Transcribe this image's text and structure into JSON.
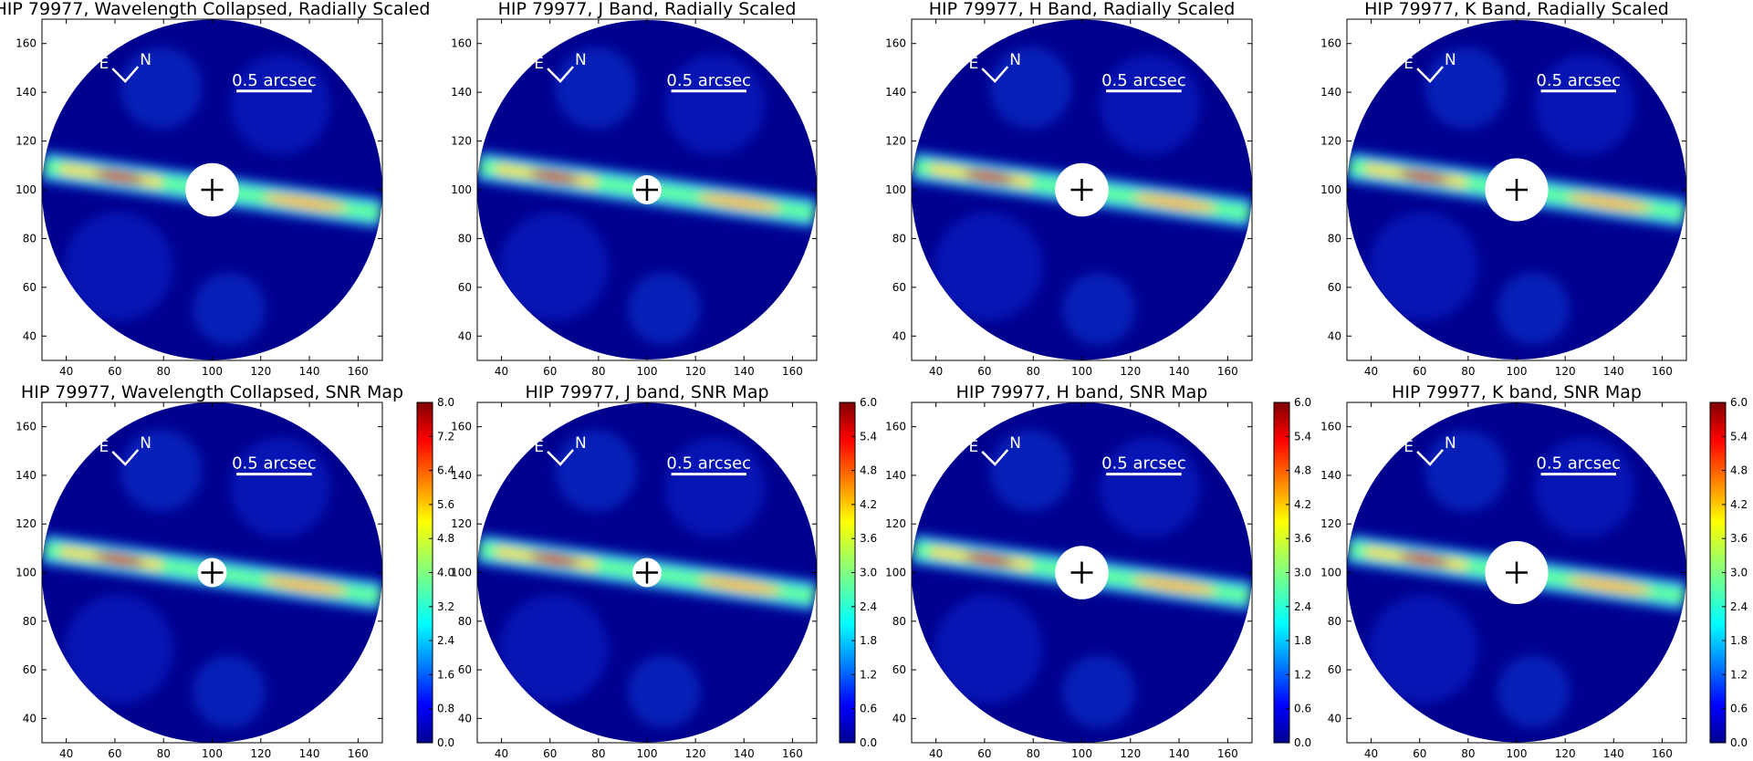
{
  "figure": {
    "star": "HIP 79977"
  },
  "chart_data": [
    {
      "type": "heatmap",
      "title": "HIP 79977, Wavelength Collapsed, Radially Scaled",
      "xlim": [
        30,
        170
      ],
      "ylim": [
        30,
        170
      ],
      "xticks": [
        40,
        60,
        80,
        100,
        120,
        140,
        160
      ],
      "yticks": [
        40,
        60,
        80,
        100,
        120,
        140,
        160
      ],
      "masked_center": [
        100,
        100
      ],
      "field_radius": 70,
      "mask_radius": 11,
      "compass": {
        "east": "E",
        "north": "N"
      },
      "scale_bar": "0.5 arcsec",
      "colorbar": null
    },
    {
      "type": "heatmap",
      "title": "HIP 79977, J Band, Radially Scaled",
      "xlim": [
        30,
        170
      ],
      "ylim": [
        30,
        170
      ],
      "xticks": [
        40,
        60,
        80,
        100,
        120,
        140,
        160
      ],
      "yticks": [
        40,
        60,
        80,
        100,
        120,
        140,
        160
      ],
      "masked_center": [
        100,
        100
      ],
      "field_radius": 70,
      "mask_radius": 6,
      "compass": {
        "east": "E",
        "north": "N"
      },
      "scale_bar": "0.5 arcsec",
      "colorbar": null
    },
    {
      "type": "heatmap",
      "title": "HIP 79977, H Band, Radially Scaled",
      "xlim": [
        30,
        170
      ],
      "ylim": [
        30,
        170
      ],
      "xticks": [
        40,
        60,
        80,
        100,
        120,
        140,
        160
      ],
      "yticks": [
        40,
        60,
        80,
        100,
        120,
        140,
        160
      ],
      "masked_center": [
        100,
        100
      ],
      "field_radius": 70,
      "mask_radius": 11,
      "compass": {
        "east": "E",
        "north": "N"
      },
      "scale_bar": "0.5 arcsec",
      "colorbar": null
    },
    {
      "type": "heatmap",
      "title": "HIP 79977, K Band, Radially Scaled",
      "xlim": [
        30,
        170
      ],
      "ylim": [
        30,
        170
      ],
      "xticks": [
        40,
        60,
        80,
        100,
        120,
        140,
        160
      ],
      "yticks": [
        40,
        60,
        80,
        100,
        120,
        140,
        160
      ],
      "masked_center": [
        100,
        100
      ],
      "field_radius": 70,
      "mask_radius": 13,
      "compass": {
        "east": "E",
        "north": "N"
      },
      "scale_bar": "0.5 arcsec",
      "colorbar": null
    },
    {
      "type": "heatmap",
      "title": "HIP 79977, Wavelength Collapsed, SNR Map",
      "xlim": [
        30,
        170
      ],
      "ylim": [
        30,
        170
      ],
      "xticks": [
        40,
        60,
        80,
        100,
        120,
        140,
        160
      ],
      "yticks": [
        40,
        60,
        80,
        100,
        120,
        140,
        160
      ],
      "masked_center": [
        100,
        100
      ],
      "field_radius": 70,
      "mask_radius": 6,
      "compass": {
        "east": "E",
        "north": "N"
      },
      "scale_bar": "0.5 arcsec",
      "colorbar": {
        "min": 0.0,
        "max": 8.0,
        "ticks": [
          "0.0",
          "0.8",
          "1.6",
          "2.4",
          "3.2",
          "4.0",
          "4.8",
          "5.6",
          "6.4",
          "7.2",
          "8.0"
        ]
      }
    },
    {
      "type": "heatmap",
      "title": "HIP 79977, J band, SNR Map",
      "xlim": [
        30,
        170
      ],
      "ylim": [
        30,
        170
      ],
      "xticks": [
        40,
        60,
        80,
        100,
        120,
        140,
        160
      ],
      "yticks": [
        40,
        60,
        80,
        100,
        120,
        140,
        160
      ],
      "masked_center": [
        100,
        100
      ],
      "field_radius": 70,
      "mask_radius": 6,
      "compass": {
        "east": "E",
        "north": "N"
      },
      "scale_bar": "0.5 arcsec",
      "colorbar": {
        "min": 0.0,
        "max": 6.0,
        "ticks": [
          "0.0",
          "0.6",
          "1.2",
          "1.8",
          "2.4",
          "3.0",
          "3.6",
          "4.2",
          "4.8",
          "5.4",
          "6.0"
        ]
      }
    },
    {
      "type": "heatmap",
      "title": "HIP 79977, H band, SNR Map",
      "xlim": [
        30,
        170
      ],
      "ylim": [
        30,
        170
      ],
      "xticks": [
        40,
        60,
        80,
        100,
        120,
        140,
        160
      ],
      "yticks": [
        40,
        60,
        80,
        100,
        120,
        140,
        160
      ],
      "masked_center": [
        100,
        100
      ],
      "field_radius": 70,
      "mask_radius": 11,
      "compass": {
        "east": "E",
        "north": "N"
      },
      "scale_bar": "0.5 arcsec",
      "colorbar": {
        "min": 0.0,
        "max": 6.0,
        "ticks": [
          "0.0",
          "0.6",
          "1.2",
          "1.8",
          "2.4",
          "3.0",
          "3.6",
          "4.2",
          "4.8",
          "5.4",
          "6.0"
        ]
      }
    },
    {
      "type": "heatmap",
      "title": "HIP 79977, K band, SNR Map",
      "xlim": [
        30,
        170
      ],
      "ylim": [
        30,
        170
      ],
      "xticks": [
        40,
        60,
        80,
        100,
        120,
        140,
        160
      ],
      "yticks": [
        40,
        60,
        80,
        100,
        120,
        140,
        160
      ],
      "masked_center": [
        100,
        100
      ],
      "field_radius": 70,
      "mask_radius": 13,
      "compass": {
        "east": "E",
        "north": "N"
      },
      "scale_bar": "0.5 arcsec",
      "colorbar": {
        "min": 0.0,
        "max": 6.0,
        "ticks": [
          "0.0",
          "0.6",
          "1.2",
          "1.8",
          "2.4",
          "3.0",
          "3.6",
          "4.2",
          "4.8",
          "5.4",
          "6.0"
        ]
      }
    }
  ],
  "colors": {
    "low": "#00008f",
    "mid_low": "#0080ff",
    "mid": "#80ff80",
    "mid_high": "#ffff00",
    "high": "#ff0000",
    "max": "#800000"
  }
}
